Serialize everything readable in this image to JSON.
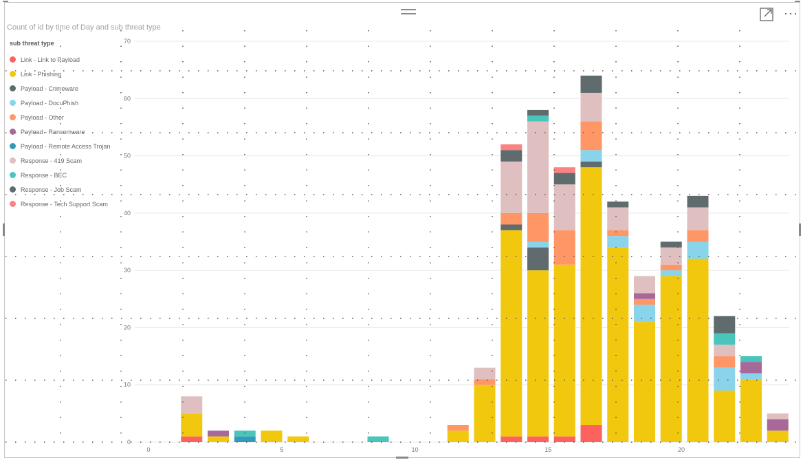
{
  "visual": {
    "focus_mode_icon": "expand-icon",
    "more_options_icon": "more-horizontal-icon",
    "more_options_label": "···"
  },
  "chart_data": {
    "type": "bar",
    "stacked": true,
    "title": "Count of id by time of Day and sub threat type",
    "legend_title": "sub threat type",
    "legend_position": "top-left",
    "xlabel": "",
    "ylabel": "",
    "ylim": [
      0,
      70
    ],
    "yticks": [
      0,
      10,
      20,
      30,
      40,
      50,
      60,
      70
    ],
    "xlim": [
      -0.5,
      23.5
    ],
    "xticks": [
      0,
      5,
      10,
      15,
      20
    ],
    "grid": true,
    "x": [
      0,
      1,
      2,
      3,
      4,
      5,
      6,
      7,
      8,
      9,
      10,
      11,
      12,
      13,
      14,
      15,
      16,
      17,
      18,
      19,
      20,
      21,
      22,
      23
    ],
    "series": [
      {
        "name": "Link - Link to Payload",
        "color": "#FD625E",
        "values": [
          0,
          1,
          0,
          0,
          0,
          0,
          0,
          0,
          0,
          0,
          0,
          0,
          0,
          1,
          1,
          1,
          3,
          0,
          0,
          0,
          0,
          0,
          0,
          0
        ]
      },
      {
        "name": "Link - Phishing",
        "color": "#F2C80F",
        "values": [
          0,
          4,
          1,
          0,
          2,
          1,
          0,
          0,
          0,
          0,
          0,
          2,
          10,
          36,
          29,
          30,
          45,
          34,
          21,
          29,
          32,
          9,
          11,
          2
        ]
      },
      {
        "name": "Payload - Crimeware",
        "color": "#5F6B6D",
        "values": [
          0,
          0,
          0,
          0,
          0,
          0,
          0,
          0,
          0,
          0,
          0,
          0,
          0,
          1,
          4,
          0,
          1,
          0,
          0,
          0,
          0,
          0,
          0,
          0
        ]
      },
      {
        "name": "Payload - DocuPhish",
        "color": "#8AD4EB",
        "values": [
          0,
          0,
          0,
          0,
          0,
          0,
          0,
          0,
          0,
          0,
          0,
          0,
          0,
          0,
          1,
          0,
          2,
          2,
          3,
          1,
          3,
          4,
          1,
          0
        ]
      },
      {
        "name": "Payload - Other",
        "color": "#FE9666",
        "values": [
          0,
          0,
          0,
          0,
          0,
          0,
          0,
          0,
          0,
          0,
          0,
          1,
          1,
          2,
          5,
          6,
          5,
          1,
          1,
          1,
          2,
          2,
          0,
          0
        ]
      },
      {
        "name": "Payload - Ransomware",
        "color": "#A66999",
        "values": [
          0,
          0,
          1,
          0,
          0,
          0,
          0,
          0,
          0,
          0,
          0,
          0,
          0,
          0,
          0,
          0,
          0,
          0,
          1,
          0,
          0,
          0,
          2,
          2
        ]
      },
      {
        "name": "Payload - Remote Access Trojan",
        "color": "#3599B8",
        "values": [
          0,
          0,
          0,
          1,
          0,
          0,
          0,
          0,
          0,
          0,
          0,
          0,
          0,
          0,
          0,
          0,
          0,
          0,
          0,
          0,
          0,
          0,
          0,
          0
        ]
      },
      {
        "name": "Response - 419 Scam",
        "color": "#DFBFBF",
        "values": [
          0,
          3,
          0,
          0,
          0,
          0,
          0,
          0,
          0,
          0,
          0,
          0,
          2,
          9,
          16,
          8,
          5,
          4,
          3,
          3,
          4,
          2,
          0,
          1
        ]
      },
      {
        "name": "Response - BEC",
        "color": "#4AC5BB",
        "values": [
          0,
          0,
          0,
          1,
          0,
          0,
          0,
          0,
          1,
          0,
          0,
          0,
          0,
          0,
          1,
          0,
          0,
          0,
          0,
          0,
          0,
          2,
          1,
          0
        ]
      },
      {
        "name": "Response - Job Scam",
        "color": "#5F6B6D",
        "values": [
          0,
          0,
          0,
          0,
          0,
          0,
          0,
          0,
          0,
          0,
          0,
          0,
          0,
          2,
          1,
          2,
          3,
          1,
          0,
          1,
          2,
          3,
          0,
          0
        ]
      },
      {
        "name": "Response - Tech Support Scam",
        "color": "#FB8281",
        "values": [
          0,
          0,
          0,
          0,
          0,
          0,
          0,
          0,
          0,
          0,
          0,
          0,
          0,
          1,
          0,
          1,
          0,
          0,
          0,
          0,
          0,
          0,
          0,
          0
        ]
      }
    ]
  }
}
